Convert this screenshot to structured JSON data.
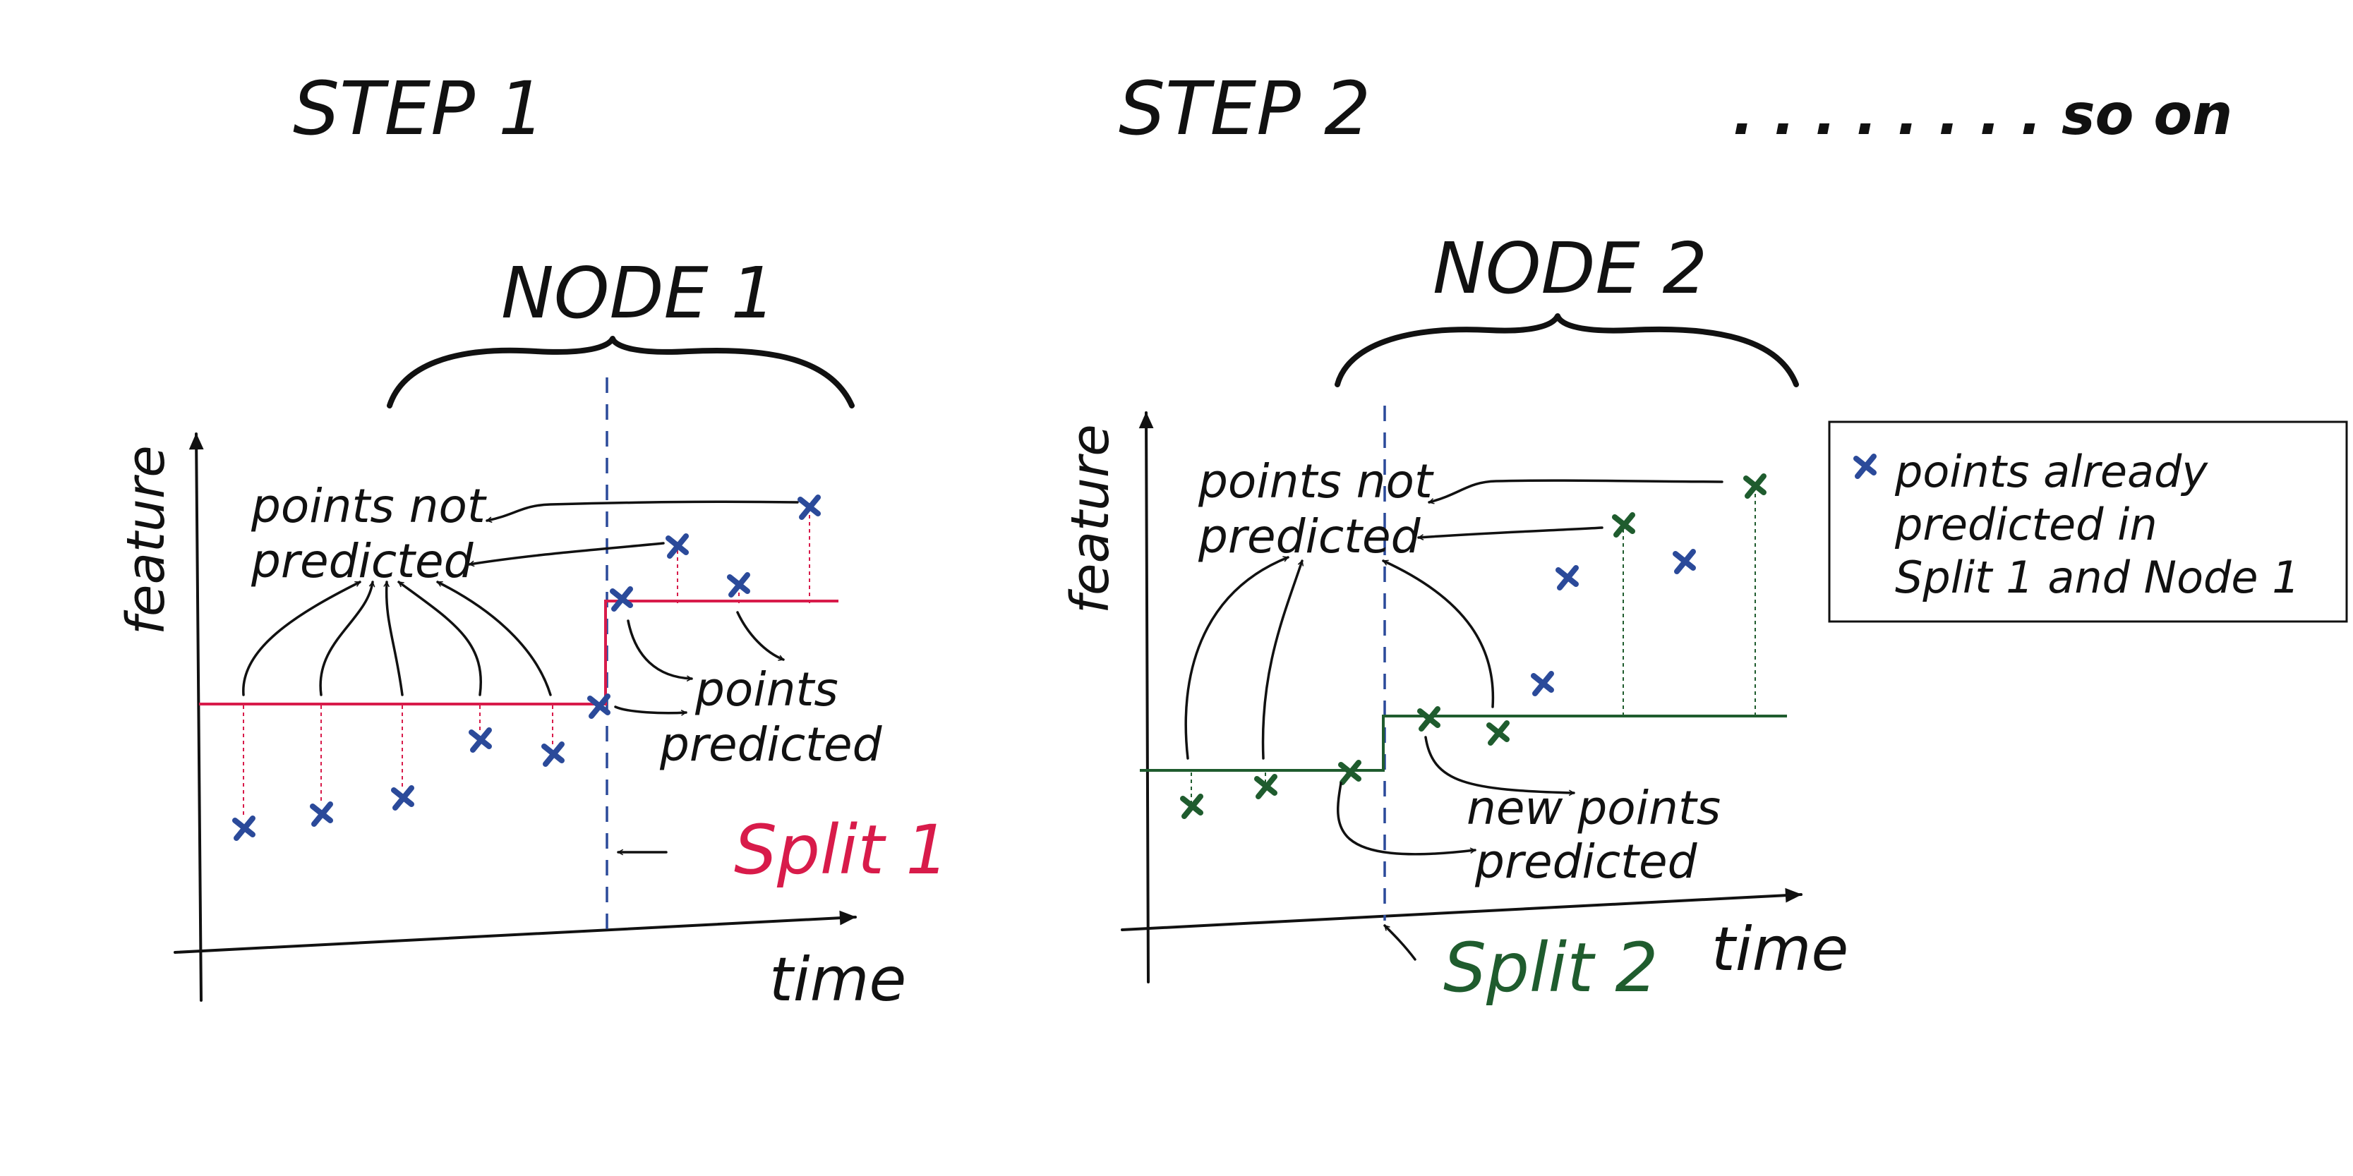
{
  "colors": {
    "ink": "#111111",
    "blue_points": "#2b4a9a",
    "split1": "#d81b4a",
    "split2": "#1f5c2e"
  },
  "header": {
    "step1": "STEP 1",
    "step2": "STEP 2",
    "so_on": ". . . . . . . . so on"
  },
  "left_panel": {
    "node_label": "NODE 1",
    "y_label": "feature",
    "x_label": "time",
    "not_predicted_line1": "points not",
    "not_predicted_line2": "predicted",
    "predicted_line1": "points",
    "predicted_line2": "predicted",
    "split_label": "Split 1"
  },
  "right_panel": {
    "node_label": "NODE 2",
    "y_label": "feature",
    "x_label": "time",
    "not_predicted_line1": "points not",
    "not_predicted_line2": "predicted",
    "new_predicted_line1": "new points",
    "new_predicted_line2": "predicted",
    "split_label": "Split 2"
  },
  "legend": {
    "icon": "cross-icon",
    "line1": "points already",
    "line2": "predicted in",
    "line3": "Split 1 and Node 1"
  }
}
